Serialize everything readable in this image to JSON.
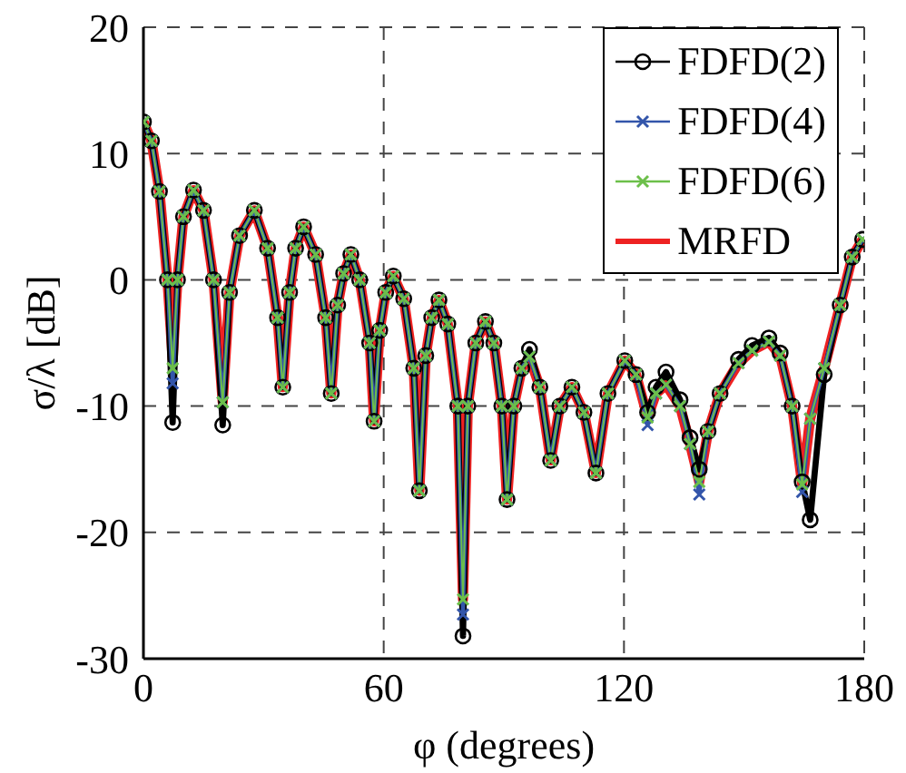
{
  "chart_data": {
    "type": "line",
    "xlabel": "φ (degrees)",
    "ylabel": "σ/λ [dB]",
    "x": [
      0,
      2,
      4,
      6,
      7.3,
      8.5,
      10,
      12.5,
      15,
      17.5,
      19.8,
      21.5,
      24,
      27.7,
      31,
      33.5,
      34.8,
      36.5,
      38,
      40,
      43,
      45.5,
      46.9,
      48.5,
      50,
      51.8,
      54,
      56.5,
      57.6,
      59,
      60.5,
      62.4,
      65,
      67.5,
      68.9,
      70.5,
      72,
      73.8,
      76,
      78.5,
      79.8,
      81,
      83,
      85.4,
      87.5,
      89.5,
      90.8,
      92.5,
      94.5,
      96.4,
      99,
      101.7,
      104,
      107,
      110,
      113,
      116,
      120.2,
      123,
      125.9,
      128,
      130.5,
      134,
      136.5,
      138.8,
      141,
      144,
      148.6,
      152,
      156.2,
      159,
      162,
      164.5,
      166.5,
      170,
      174,
      177,
      179.6
    ],
    "series": [
      {
        "name": "FDFD(2)",
        "color": "#000000",
        "marker": "circle",
        "values": [
          12.5,
          11,
          7,
          0,
          -11.3,
          0,
          5,
          7.1,
          5.5,
          0,
          -11.5,
          -1,
          3.5,
          5.5,
          2.5,
          -3,
          -8.5,
          -1,
          2.5,
          4.2,
          2,
          -3,
          -9,
          -2,
          0.5,
          2,
          0,
          -5,
          -11.2,
          -4,
          -1,
          0.3,
          -1.5,
          -7,
          -16.7,
          -6,
          -3,
          -1.6,
          -3.5,
          -10,
          -28.2,
          -10,
          -5,
          -3.3,
          -5,
          -10,
          -17.4,
          -10,
          -7,
          -5.5,
          -8.5,
          -14.3,
          -10,
          -8.5,
          -10.5,
          -15.3,
          -9,
          -6.4,
          -7.5,
          -10.5,
          -8.5,
          -7.3,
          -9.5,
          -12.5,
          -15,
          -12,
          -9,
          -6.3,
          -5.2,
          -4.6,
          -5.8,
          -10,
          -16,
          -19,
          -7.5,
          -2,
          1.8,
          3.2
        ]
      },
      {
        "name": "FDFD(4)",
        "color": "#3355aa",
        "marker": "cross",
        "values": [
          12.5,
          11,
          7,
          0,
          -8.2,
          0,
          5,
          7.1,
          5.5,
          0,
          -9.7,
          -1,
          3.5,
          5.5,
          2.5,
          -3,
          -8.5,
          -1,
          2.5,
          4.2,
          2,
          -3,
          -9,
          -2,
          0.5,
          2,
          0,
          -5,
          -11.2,
          -4,
          -1,
          0.3,
          -1.5,
          -7,
          -16.7,
          -6,
          -3,
          -1.6,
          -3.5,
          -10,
          -26.5,
          -10,
          -5,
          -3.3,
          -5,
          -10,
          -17.4,
          -10,
          -7,
          -6.1,
          -8.5,
          -14.3,
          -10,
          -8.5,
          -10.5,
          -15.3,
          -9,
          -6.4,
          -7.5,
          -11.5,
          -9,
          -8.3,
          -10,
          -13,
          -17,
          -12,
          -9,
          -6.6,
          -5.6,
          -4.9,
          -6,
          -10,
          -16.8,
          -11,
          -7,
          -2,
          1.8,
          3.2
        ]
      },
      {
        "name": "FDFD(6)",
        "color": "#6cbf4a",
        "marker": "cross",
        "values": [
          12.5,
          11,
          7,
          0,
          -7,
          0,
          5,
          7.1,
          5.5,
          0,
          -9.7,
          -1,
          3.5,
          5.5,
          2.5,
          -3,
          -8.5,
          -1,
          2.5,
          4.2,
          2,
          -3,
          -9,
          -2,
          0.5,
          2,
          0,
          -5,
          -11.2,
          -4,
          -1,
          0.3,
          -1.5,
          -7,
          -16.7,
          -6,
          -3,
          -1.6,
          -3.5,
          -10,
          -25.3,
          -10,
          -5,
          -3.3,
          -5,
          -10,
          -17.4,
          -10,
          -7,
          -6.1,
          -8.5,
          -14.3,
          -10,
          -8.5,
          -10.5,
          -15.3,
          -9,
          -6.4,
          -7.5,
          -10.9,
          -9,
          -8.3,
          -10,
          -13,
          -16,
          -12,
          -9,
          -6.6,
          -5.6,
          -4.9,
          -6,
          -10,
          -16.2,
          -11,
          -7,
          -2,
          1.8,
          3.2
        ]
      },
      {
        "name": "MRFD",
        "color": "#ee2222",
        "values": [
          12.5,
          11,
          7,
          0,
          -6.3,
          0,
          5,
          7.1,
          5.5,
          0,
          -9.7,
          -1,
          3.5,
          5.5,
          2.5,
          -3,
          -8.5,
          -1,
          2.5,
          4.2,
          2,
          -3,
          -9,
          -2,
          0.5,
          2,
          0,
          -5,
          -11.2,
          -4,
          -1,
          0.3,
          -1.5,
          -7,
          -16.7,
          -6,
          -3,
          -1.6,
          -3.5,
          -10,
          -25.3,
          -10,
          -5,
          -3.3,
          -5,
          -10,
          -17.4,
          -10,
          -7,
          -6.1,
          -8.5,
          -14.3,
          -10,
          -8.5,
          -10.5,
          -15.3,
          -9,
          -6.4,
          -7.5,
          -10.9,
          -9,
          -8.3,
          -10,
          -13,
          -16,
          -12,
          -9,
          -6.6,
          -5.6,
          -4.9,
          -6,
          -10,
          -16.2,
          -11,
          -7,
          -2,
          1.8,
          3.2
        ]
      }
    ],
    "xlim": [
      0,
      180
    ],
    "xticks": [
      0,
      60,
      120,
      180
    ],
    "ylim": [
      -30,
      20
    ],
    "yticks": [
      -30,
      -20,
      -10,
      0,
      10,
      20
    ],
    "grid": true,
    "legend": "top right",
    "line_style": "solid"
  }
}
